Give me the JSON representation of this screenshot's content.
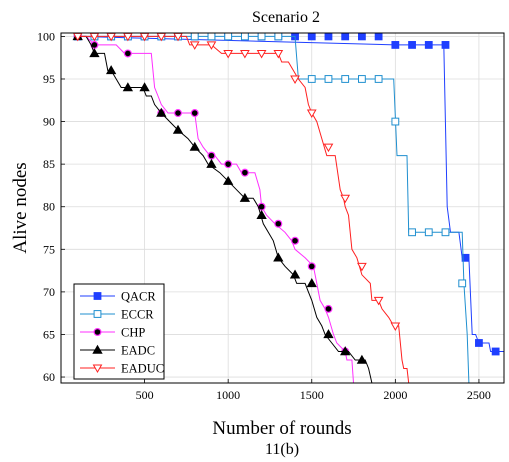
{
  "chart_data": {
    "type": "line",
    "title": "Scenario 2",
    "xlabel": "Number of rounds",
    "ylabel": "Alive nodes",
    "caption": "11(b)",
    "xlim": [
      0,
      2650
    ],
    "ylim": [
      59.3,
      100.4
    ],
    "xticks": [
      500,
      1000,
      1500,
      2000,
      2500
    ],
    "yticks": [
      60,
      65,
      70,
      75,
      80,
      85,
      90,
      95,
      100
    ],
    "grid": true,
    "legend_position": "bottom-left",
    "series": [
      {
        "name": "QACR",
        "color": "#1f3fff",
        "marker": "square-filled",
        "steps": [
          [
            100,
            100
          ],
          [
            2000,
            99
          ],
          [
            2290,
            99
          ],
          [
            2310,
            80
          ],
          [
            2330,
            77
          ],
          [
            2380,
            77
          ],
          [
            2400,
            74
          ],
          [
            2440,
            74
          ],
          [
            2460,
            65
          ],
          [
            2480,
            65
          ],
          [
            2500,
            64
          ],
          [
            2560,
            64
          ],
          [
            2570,
            63
          ],
          [
            2650,
            63
          ]
        ],
        "markers": [
          [
            100,
            100
          ],
          [
            200,
            100
          ],
          [
            300,
            100
          ],
          [
            400,
            100
          ],
          [
            500,
            100
          ],
          [
            600,
            100
          ],
          [
            700,
            100
          ],
          [
            800,
            100
          ],
          [
            900,
            100
          ],
          [
            1000,
            100
          ],
          [
            1100,
            100
          ],
          [
            1200,
            100
          ],
          [
            1300,
            100
          ],
          [
            1400,
            100
          ],
          [
            1500,
            100
          ],
          [
            1600,
            100
          ],
          [
            1700,
            100
          ],
          [
            1800,
            100
          ],
          [
            1900,
            100
          ],
          [
            2000,
            99
          ],
          [
            2100,
            99
          ],
          [
            2200,
            99
          ],
          [
            2300,
            99
          ],
          [
            2420,
            74
          ],
          [
            2500,
            64
          ],
          [
            2600,
            63
          ]
        ]
      },
      {
        "name": "ECCR",
        "color": "#1f8fcf",
        "marker": "square-open",
        "steps": [
          [
            100,
            100
          ],
          [
            1400,
            100
          ],
          [
            1420,
            95
          ],
          [
            1990,
            95
          ],
          [
            2010,
            86
          ],
          [
            2070,
            86
          ],
          [
            2080,
            77
          ],
          [
            2400,
            77
          ],
          [
            2410,
            71
          ],
          [
            2430,
            65
          ],
          [
            2440,
            59.3
          ]
        ],
        "markers": [
          [
            100,
            100
          ],
          [
            200,
            100
          ],
          [
            300,
            100
          ],
          [
            400,
            100
          ],
          [
            500,
            100
          ],
          [
            600,
            100
          ],
          [
            700,
            100
          ],
          [
            800,
            100
          ],
          [
            900,
            100
          ],
          [
            1000,
            100
          ],
          [
            1100,
            100
          ],
          [
            1200,
            100
          ],
          [
            1300,
            100
          ],
          [
            1500,
            95
          ],
          [
            1600,
            95
          ],
          [
            1700,
            95
          ],
          [
            1800,
            95
          ],
          [
            1900,
            95
          ],
          [
            2000,
            90
          ],
          [
            2100,
            77
          ],
          [
            2200,
            77
          ],
          [
            2300,
            77
          ],
          [
            2400,
            71
          ]
        ]
      },
      {
        "name": "CHP",
        "color": "#ff2fff",
        "marker": "circle-filled",
        "steps": [
          [
            100,
            100
          ],
          [
            150,
            100
          ],
          [
            200,
            99
          ],
          [
            330,
            99
          ],
          [
            380,
            98
          ],
          [
            540,
            98
          ],
          [
            560,
            94
          ],
          [
            580,
            93
          ],
          [
            600,
            92
          ],
          [
            640,
            91
          ],
          [
            800,
            91
          ],
          [
            820,
            88
          ],
          [
            850,
            87
          ],
          [
            890,
            86
          ],
          [
            920,
            86
          ],
          [
            960,
            85
          ],
          [
            1050,
            85
          ],
          [
            1080,
            84
          ],
          [
            1160,
            84
          ],
          [
            1190,
            82
          ],
          [
            1200,
            80
          ],
          [
            1230,
            79
          ],
          [
            1280,
            78
          ],
          [
            1340,
            77
          ],
          [
            1380,
            76
          ],
          [
            1400,
            75
          ],
          [
            1460,
            74
          ],
          [
            1510,
            73
          ],
          [
            1530,
            71
          ],
          [
            1550,
            69
          ],
          [
            1580,
            68
          ],
          [
            1600,
            67
          ],
          [
            1630,
            65
          ],
          [
            1650,
            64
          ],
          [
            1700,
            63
          ],
          [
            1710,
            62
          ],
          [
            1740,
            62
          ],
          [
            1750,
            59.3
          ]
        ],
        "markers": [
          [
            100,
            100
          ],
          [
            200,
            99
          ],
          [
            400,
            98
          ],
          [
            600,
            91
          ],
          [
            700,
            91
          ],
          [
            800,
            91
          ],
          [
            900,
            86
          ],
          [
            1000,
            85
          ],
          [
            1100,
            84
          ],
          [
            1200,
            80
          ],
          [
            1300,
            78
          ],
          [
            1400,
            76
          ],
          [
            1500,
            73
          ],
          [
            1600,
            68
          ],
          [
            1700,
            63
          ]
        ]
      },
      {
        "name": "EADC",
        "color": "#000000",
        "marker": "triangle-filled",
        "steps": [
          [
            100,
            100
          ],
          [
            150,
            100
          ],
          [
            180,
            99
          ],
          [
            200,
            98
          ],
          [
            260,
            98
          ],
          [
            280,
            96
          ],
          [
            300,
            96
          ],
          [
            330,
            95
          ],
          [
            360,
            94
          ],
          [
            490,
            94
          ],
          [
            510,
            93
          ],
          [
            540,
            93
          ],
          [
            560,
            92
          ],
          [
            600,
            91
          ],
          [
            650,
            90
          ],
          [
            700,
            89
          ],
          [
            760,
            88
          ],
          [
            800,
            87
          ],
          [
            850,
            86
          ],
          [
            880,
            85
          ],
          [
            950,
            84
          ],
          [
            1000,
            83
          ],
          [
            1050,
            82
          ],
          [
            1100,
            81
          ],
          [
            1150,
            81
          ],
          [
            1180,
            80
          ],
          [
            1210,
            78
          ],
          [
            1240,
            77
          ],
          [
            1270,
            76
          ],
          [
            1300,
            74
          ],
          [
            1340,
            73
          ],
          [
            1390,
            72
          ],
          [
            1410,
            71
          ],
          [
            1460,
            71
          ],
          [
            1480,
            70
          ],
          [
            1500,
            69
          ],
          [
            1530,
            67
          ],
          [
            1560,
            66
          ],
          [
            1580,
            65
          ],
          [
            1620,
            64
          ],
          [
            1660,
            63
          ],
          [
            1720,
            63
          ],
          [
            1760,
            62
          ],
          [
            1820,
            62
          ],
          [
            1840,
            61
          ],
          [
            1860,
            59.3
          ]
        ],
        "markers": [
          [
            100,
            100
          ],
          [
            200,
            98
          ],
          [
            300,
            96
          ],
          [
            400,
            94
          ],
          [
            500,
            94
          ],
          [
            600,
            91
          ],
          [
            700,
            89
          ],
          [
            800,
            87
          ],
          [
            900,
            85
          ],
          [
            1000,
            83
          ],
          [
            1100,
            81
          ],
          [
            1200,
            79
          ],
          [
            1300,
            74
          ],
          [
            1400,
            72
          ],
          [
            1500,
            71
          ],
          [
            1600,
            65
          ],
          [
            1700,
            63
          ],
          [
            1800,
            62
          ]
        ]
      },
      {
        "name": "EADUC",
        "color": "#ff2020",
        "marker": "triangle-down-open",
        "steps": [
          [
            100,
            100
          ],
          [
            750,
            100
          ],
          [
            770,
            99
          ],
          [
            900,
            99
          ],
          [
            960,
            98
          ],
          [
            1300,
            98
          ],
          [
            1320,
            97
          ],
          [
            1360,
            97
          ],
          [
            1390,
            96
          ],
          [
            1420,
            95
          ],
          [
            1460,
            94
          ],
          [
            1480,
            92
          ],
          [
            1500,
            91
          ],
          [
            1530,
            90
          ],
          [
            1560,
            88
          ],
          [
            1590,
            86
          ],
          [
            1640,
            86
          ],
          [
            1670,
            82
          ],
          [
            1690,
            81
          ],
          [
            1700,
            80
          ],
          [
            1720,
            79
          ],
          [
            1740,
            75
          ],
          [
            1770,
            74
          ],
          [
            1800,
            72
          ],
          [
            1850,
            71
          ],
          [
            1860,
            69
          ],
          [
            1900,
            69
          ],
          [
            1920,
            68
          ],
          [
            1960,
            67
          ],
          [
            1990,
            66
          ],
          [
            2020,
            66
          ],
          [
            2040,
            62
          ],
          [
            2050,
            61
          ],
          [
            2070,
            61
          ],
          [
            2080,
            59.3
          ]
        ],
        "markers": [
          [
            100,
            100
          ],
          [
            200,
            100
          ],
          [
            300,
            100
          ],
          [
            400,
            100
          ],
          [
            500,
            100
          ],
          [
            600,
            100
          ],
          [
            700,
            100
          ],
          [
            800,
            99
          ],
          [
            900,
            99
          ],
          [
            1000,
            98
          ],
          [
            1100,
            98
          ],
          [
            1200,
            98
          ],
          [
            1300,
            98
          ],
          [
            1400,
            95
          ],
          [
            1500,
            91
          ],
          [
            1600,
            87
          ],
          [
            1700,
            81
          ],
          [
            1800,
            73
          ],
          [
            1900,
            69
          ],
          [
            2000,
            66
          ]
        ]
      }
    ]
  }
}
